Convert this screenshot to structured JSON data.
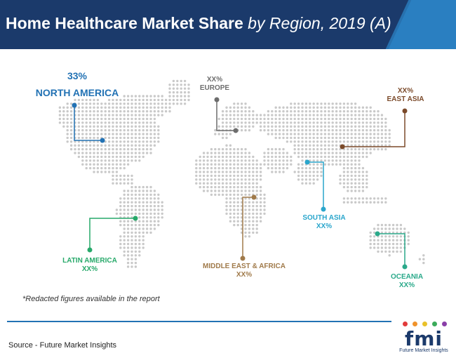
{
  "header": {
    "title_main": "Home Healthcare Market Share",
    "title_sub": " by Region, 2019 (A)"
  },
  "regions": {
    "north_america": {
      "value": "33%",
      "name": "NORTH AMERICA",
      "color": "#2272b4"
    },
    "europe": {
      "value": "XX%",
      "name": "EUROPE",
      "color": "#6d6d6d"
    },
    "east_asia": {
      "value": "XX%",
      "name": "EAST ASIA",
      "color": "#7b4a2a"
    },
    "south_asia": {
      "value": "XX%",
      "name": "SOUTH ASIA",
      "color": "#2aa6cc"
    },
    "latin_america": {
      "value": "XX%",
      "name": "LATIN AMERICA",
      "color": "#27a96a"
    },
    "middle_east_africa": {
      "value": "XX%",
      "name": "MIDDLE EAST & AFRICA",
      "color": "#a07a4a"
    },
    "oceania": {
      "value": "XX%",
      "name": "OCEANIA",
      "color": "#2aa98a"
    }
  },
  "note": "*Redacted figures available in the report",
  "source": "Source - Future Market Insights",
  "logo": {
    "text": "fmi",
    "tagline": "Future Market Insights"
  }
}
